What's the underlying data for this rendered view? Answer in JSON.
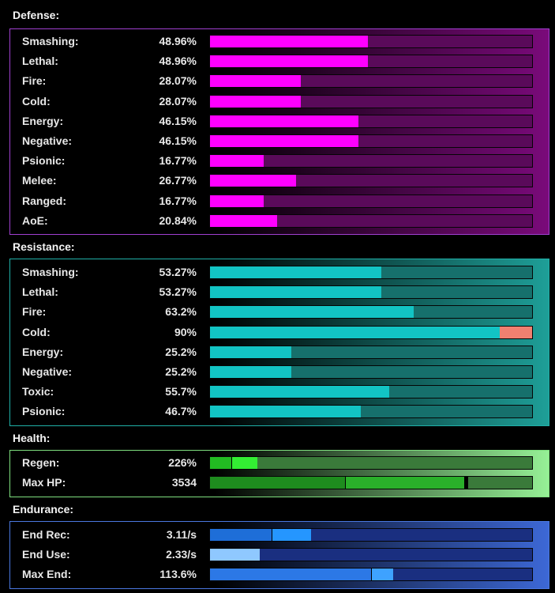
{
  "defense": {
    "title": "Defense:",
    "colors": {
      "fill": "#ff00ff",
      "track": "#5a0a5a"
    },
    "rows": [
      {
        "label": "Smashing:",
        "value": "48.96%",
        "fraction": 0.4896
      },
      {
        "label": "Lethal:",
        "value": "48.96%",
        "fraction": 0.4896
      },
      {
        "label": "Fire:",
        "value": "28.07%",
        "fraction": 0.2807
      },
      {
        "label": "Cold:",
        "value": "28.07%",
        "fraction": 0.2807
      },
      {
        "label": "Energy:",
        "value": "46.15%",
        "fraction": 0.4615
      },
      {
        "label": "Negative:",
        "value": "46.15%",
        "fraction": 0.4615
      },
      {
        "label": "Psionic:",
        "value": "16.77%",
        "fraction": 0.1677
      },
      {
        "label": "Melee:",
        "value": "26.77%",
        "fraction": 0.2677
      },
      {
        "label": "Ranged:",
        "value": "16.77%",
        "fraction": 0.1677
      },
      {
        "label": "AoE:",
        "value": "20.84%",
        "fraction": 0.2084
      }
    ]
  },
  "resistance": {
    "title": "Resistance:",
    "colors": {
      "fill": "#12c4c4",
      "track": "#16706c",
      "cap": "#f08070"
    },
    "rows": [
      {
        "label": "Smashing:",
        "value": "53.27%",
        "fraction": 0.5327
      },
      {
        "label": "Lethal:",
        "value": "53.27%",
        "fraction": 0.5327
      },
      {
        "label": "Fire:",
        "value": "63.2%",
        "fraction": 0.632
      },
      {
        "label": "Cold:",
        "value": "90%",
        "fraction": 0.9,
        "capped": true
      },
      {
        "label": "Energy:",
        "value": "25.2%",
        "fraction": 0.252
      },
      {
        "label": "Negative:",
        "value": "25.2%",
        "fraction": 0.252
      },
      {
        "label": "Toxic:",
        "value": "55.7%",
        "fraction": 0.557
      },
      {
        "label": "Psionic:",
        "value": "46.7%",
        "fraction": 0.467
      }
    ]
  },
  "health": {
    "title": "Health:",
    "colors": {
      "track": "#3a7a3a"
    },
    "rows": [
      {
        "label": "Regen:",
        "value": "226%",
        "segments": [
          {
            "fraction": 0.065,
            "color": "#22bb22"
          },
          {
            "fraction": 0.082,
            "color": "#33ee33"
          }
        ]
      },
      {
        "label": "Max HP:",
        "value": "3534",
        "segments": [
          {
            "fraction": 0.418,
            "color": "#1e8c1e"
          },
          {
            "fraction": 0.37,
            "color": "#2ab02a"
          },
          {
            "fraction": 0.012,
            "color": "#000000"
          }
        ]
      }
    ]
  },
  "endurance": {
    "title": "Endurance:",
    "colors": {
      "track": "#1a2f80"
    },
    "rows": [
      {
        "label": "End Rec:",
        "value": "3.11/s",
        "segments": [
          {
            "fraction": 0.19,
            "color": "#1e6ed8"
          },
          {
            "fraction": 0.122,
            "color": "#2596ff"
          }
        ]
      },
      {
        "label": "End Use:",
        "value": "2.33/s",
        "segments": [
          {
            "fraction": 0.155,
            "color": "#8fc8ff"
          }
        ]
      },
      {
        "label": "Max End:",
        "value": "113.6%",
        "segments": [
          {
            "fraction": 0.5,
            "color": "#2c78e6"
          },
          {
            "fraction": 0.068,
            "color": "#3ea2ff"
          }
        ]
      }
    ]
  }
}
